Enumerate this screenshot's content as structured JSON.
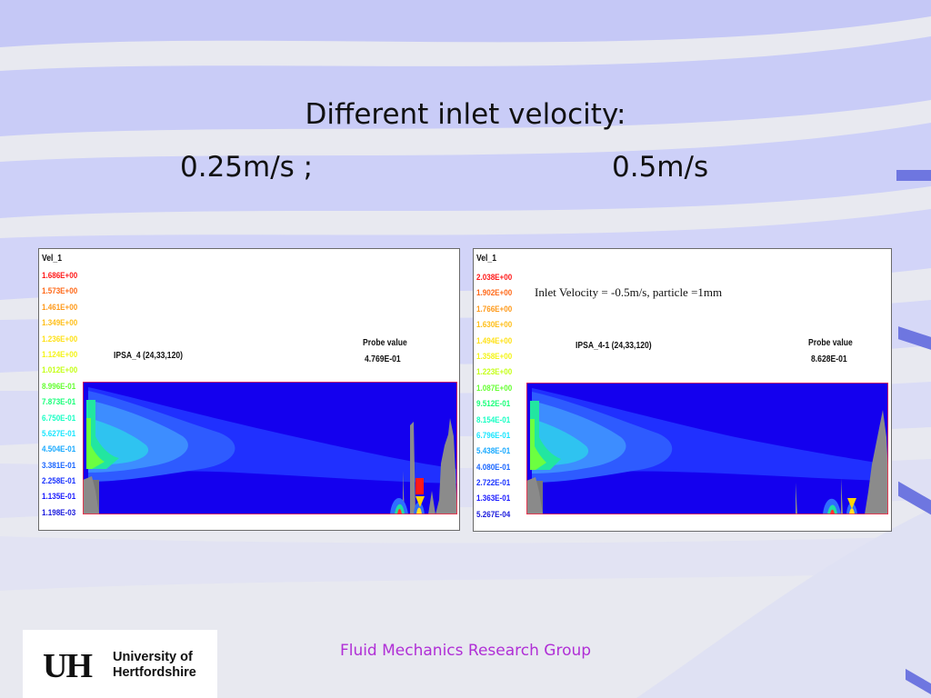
{
  "slide": {
    "title": "Different inlet velocity:",
    "left_label": "0.25m/s ;",
    "right_label": "0.5m/s",
    "footer": "Fluid Mechanics Research Group"
  },
  "logo": {
    "mark": "UH",
    "line1": "University of",
    "line2": "Hertfordshire"
  },
  "panels": [
    {
      "var": "Vel_1",
      "legend": [
        "1.686E+00",
        "1.573E+00",
        "1.461E+00",
        "1.349E+00",
        "1.236E+00",
        "1.124E+00",
        "1.012E+00",
        "8.996E-01",
        "7.873E-01",
        "6.750E-01",
        "5.627E-01",
        "4.504E-01",
        "3.381E-01",
        "2.258E-01",
        "1.135E-01",
        "1.198E-03"
      ],
      "ipsa": "IPSA_4 (24,33,120)",
      "probe_label": "Probe value",
      "probe_value": "4.769E-01",
      "note": ""
    },
    {
      "var": "Vel_1",
      "legend": [
        "2.038E+00",
        "1.902E+00",
        "1.766E+00",
        "1.630E+00",
        "1.494E+00",
        "1.358E+00",
        "1.223E+00",
        "1.087E+00",
        "9.512E-01",
        "8.154E-01",
        "6.796E-01",
        "5.438E-01",
        "4.080E-01",
        "2.722E-01",
        "1.363E-01",
        "5.267E-04"
      ],
      "ipsa": "IPSA_4-1 (24,33,120)",
      "probe_label": "Probe value",
      "probe_value": "8.628E-01",
      "note": "Inlet Velocity = -0.5m/s, particle =1mm"
    }
  ],
  "legend_colors": [
    "#ff1a1a",
    "#ff6a1a",
    "#ff9a1a",
    "#ffbf1a",
    "#ffe21a",
    "#f4f41a",
    "#c6ff1a",
    "#66ff33",
    "#1aff7a",
    "#1affc4",
    "#1ae6ff",
    "#1aaaff",
    "#1a66ff",
    "#1a33ff",
    "#1a1aff",
    "#1a1add"
  ]
}
